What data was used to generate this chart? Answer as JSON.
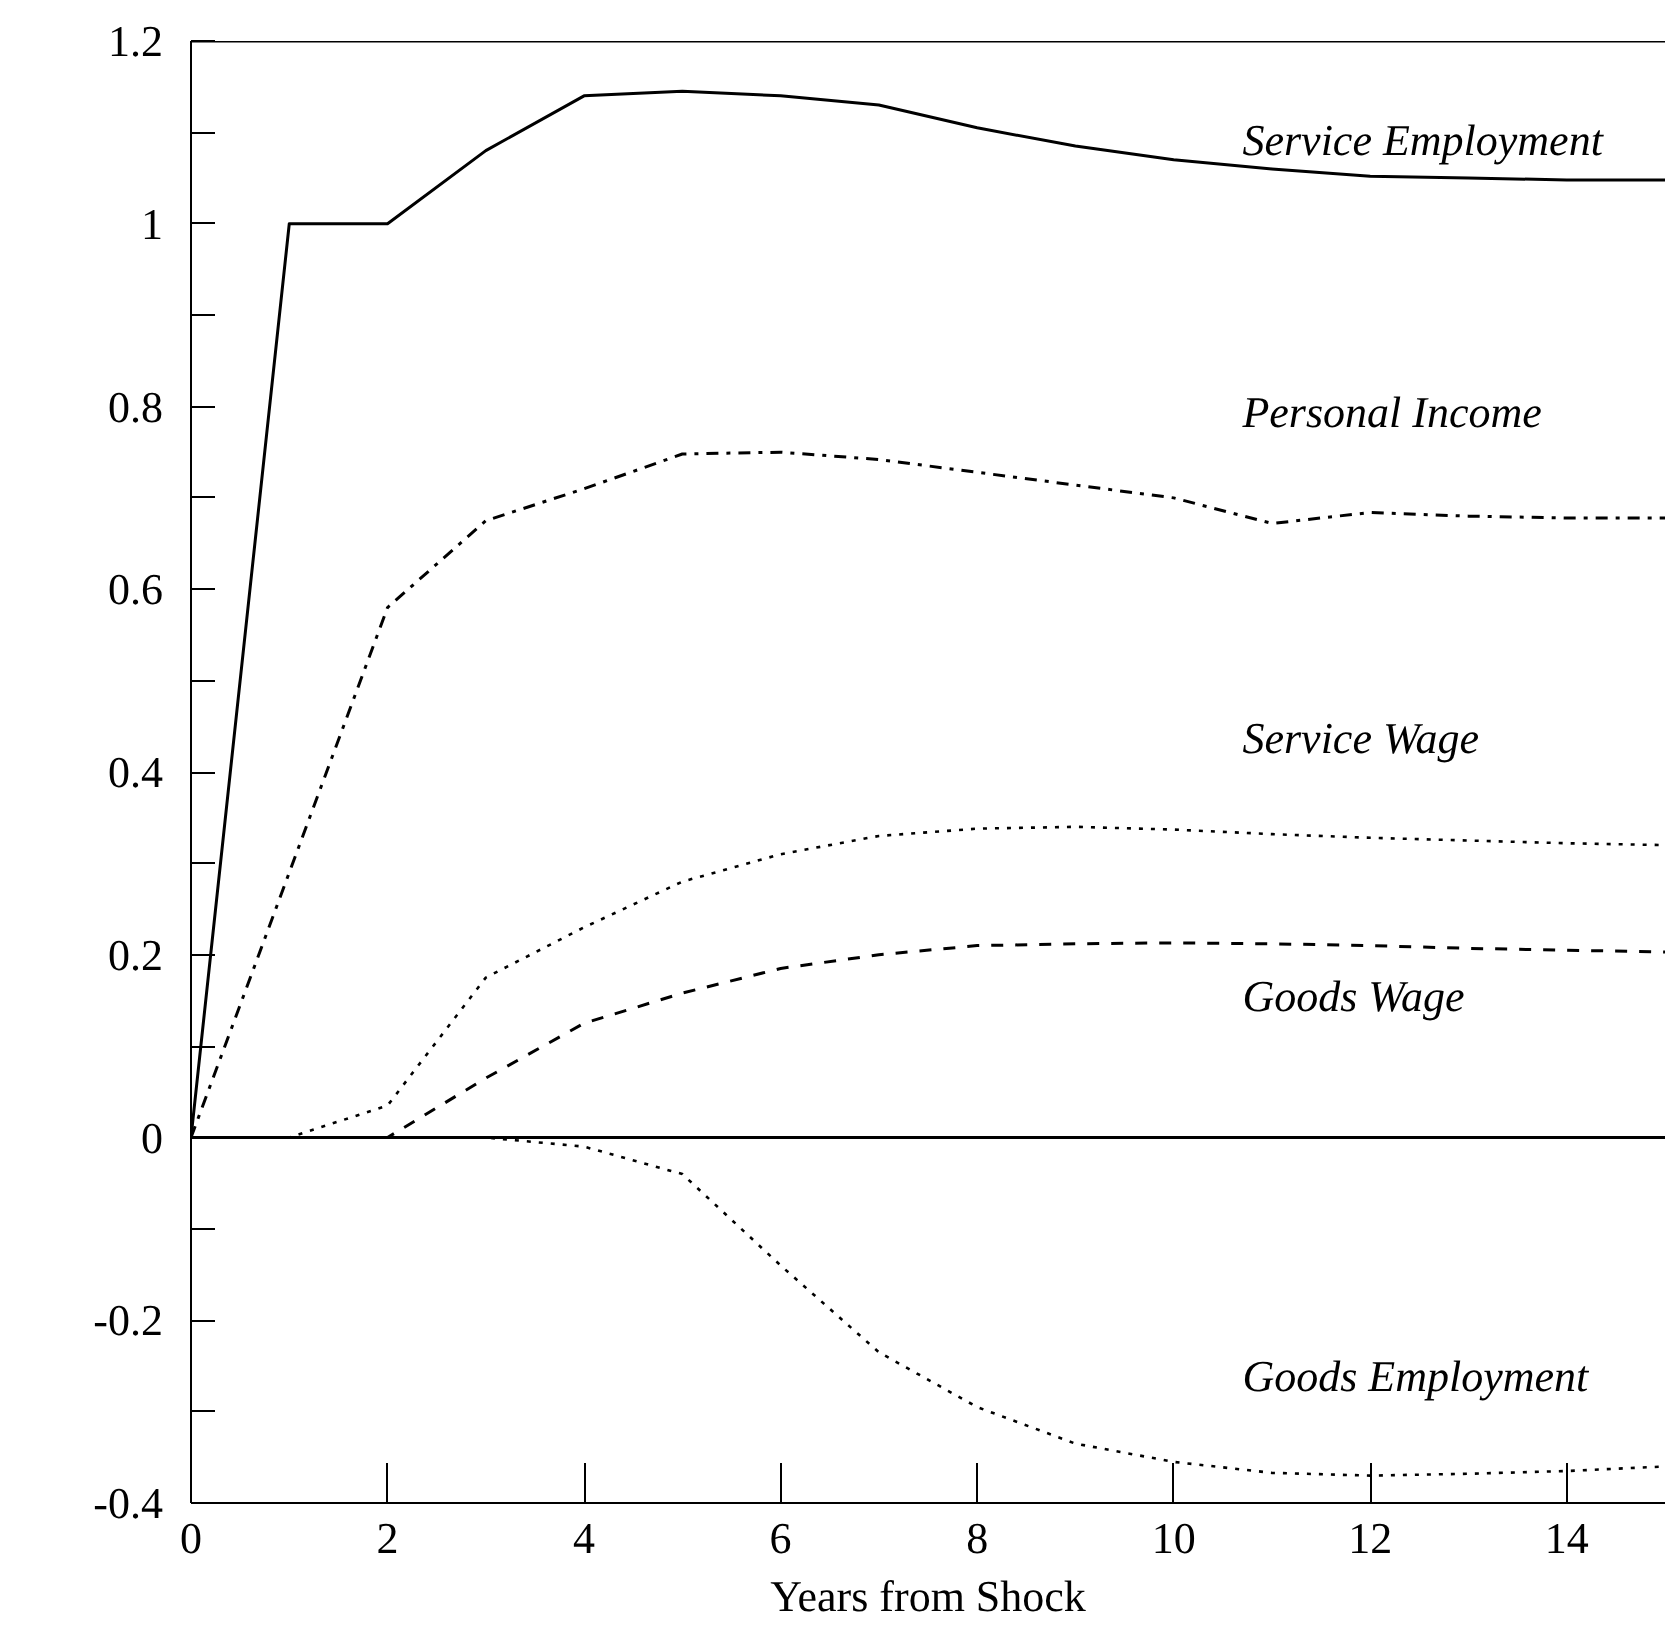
{
  "chart_data": {
    "type": "line",
    "xlabel": "Years from Shock",
    "x": [
      0,
      1,
      2,
      3,
      4,
      5,
      6,
      7,
      8,
      9,
      10,
      11,
      12,
      13,
      14,
      15
    ],
    "series": [
      {
        "name": "Service Employment",
        "color": "#000000",
        "line_style": "solid",
        "values": [
          0,
          1,
          1,
          1.08,
          1.14,
          1.145,
          1.14,
          1.13,
          1.105,
          1.085,
          1.07,
          1.06,
          1.052,
          1.05,
          1.048,
          1.048
        ]
      },
      {
        "name": "Personal Income",
        "color": "#000000",
        "line_style": "dashdot",
        "values": [
          0,
          0.29,
          0.58,
          0.675,
          0.71,
          0.748,
          0.75,
          0.742,
          0.728,
          0.714,
          0.7,
          0.672,
          0.684,
          0.68,
          0.678,
          0.678
        ]
      },
      {
        "name": "Service Wage",
        "color": "#000000",
        "line_style": "dotted",
        "values": [
          0,
          0,
          0.035,
          0.175,
          0.23,
          0.28,
          0.31,
          0.33,
          0.338,
          0.34,
          0.337,
          0.332,
          0.328,
          0.325,
          0.322,
          0.32
        ]
      },
      {
        "name": "Goods Wage",
        "color": "#000000",
        "line_style": "dashed",
        "values": [
          0,
          0,
          0,
          0.065,
          0.125,
          0.158,
          0.185,
          0.2,
          0.21,
          0.212,
          0.213,
          0.212,
          0.21,
          0.207,
          0.205,
          0.203
        ]
      },
      {
        "name": "Goods Employment",
        "color": "#000000",
        "line_style": "dotted",
        "values": [
          0,
          0,
          0,
          0,
          -0.01,
          -0.04,
          -0.14,
          -0.235,
          -0.295,
          -0.335,
          -0.355,
          -0.367,
          -0.37,
          -0.368,
          -0.365,
          -0.36
        ]
      }
    ],
    "xlim": [
      0,
      15
    ],
    "ylim": [
      -0.4,
      1.2
    ],
    "xticks": [
      0,
      2,
      4,
      6,
      8,
      10,
      12,
      14
    ],
    "yticks": [
      -0.4,
      {
        "value": -0.3,
        "label": null
      },
      -0.2,
      {
        "value": -0.1,
        "label": null
      },
      0,
      {
        "value": 0.1,
        "label": null
      },
      0.2,
      {
        "value": 0.3,
        "label": null
      },
      0.4,
      {
        "value": 0.5,
        "label": null
      },
      0.6,
      {
        "value": 0.7,
        "label": null
      },
      0.8,
      {
        "value": 0.9,
        "label": null
      },
      1,
      {
        "value": 1.1,
        "label": null
      },
      1.2
    ],
    "ref_lines": [
      {
        "axis": "y",
        "value": 0,
        "color": "#000000",
        "line_style": "solid"
      }
    ],
    "grid": false,
    "marker": "none"
  }
}
